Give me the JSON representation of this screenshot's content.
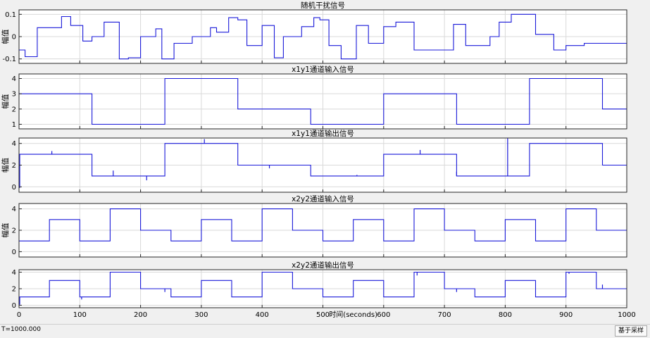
{
  "colors": {
    "background": "#ffffff",
    "axis": "#262626",
    "grid": "#d9d9d9",
    "line": "#1a1ad9"
  },
  "status": {
    "time_text": "T=1000.000",
    "solver_label": "基于采样"
  },
  "chart_data": [
    {
      "type": "line",
      "title": "随机干扰信号",
      "ylabel": "幅值",
      "xlim": [
        0,
        1000
      ],
      "ylim": [
        -0.12,
        0.12
      ],
      "yticks": [
        0.1,
        0,
        -0.1
      ],
      "ytick_labels": [
        "0.1",
        "0",
        "-0.1"
      ],
      "xticks": [
        0,
        100,
        200,
        300,
        400,
        500,
        600,
        700,
        800,
        900,
        1000
      ],
      "show_xtick_labels": false,
      "steps": [
        [
          0,
          -0.06
        ],
        [
          10,
          -0.09
        ],
        [
          30,
          0.04
        ],
        [
          60,
          0.04
        ],
        [
          70,
          0.09
        ],
        [
          85,
          0.05
        ],
        [
          105,
          -0.02
        ],
        [
          120,
          0.0
        ],
        [
          140,
          0.065
        ],
        [
          165,
          -0.1
        ],
        [
          180,
          -0.095
        ],
        [
          200,
          0.0
        ],
        [
          225,
          0.035
        ],
        [
          235,
          -0.1
        ],
        [
          255,
          -0.03
        ],
        [
          285,
          0.0
        ],
        [
          300,
          0.0
        ],
        [
          315,
          0.04
        ],
        [
          325,
          0.02
        ],
        [
          345,
          0.085
        ],
        [
          360,
          0.075
        ],
        [
          375,
          -0.04
        ],
        [
          400,
          0.05
        ],
        [
          420,
          -0.095
        ],
        [
          435,
          0.0
        ],
        [
          465,
          0.045
        ],
        [
          485,
          0.085
        ],
        [
          495,
          0.075
        ],
        [
          510,
          -0.04
        ],
        [
          530,
          -0.1
        ],
        [
          555,
          0.05
        ],
        [
          575,
          -0.03
        ],
        [
          600,
          0.045
        ],
        [
          620,
          0.065
        ],
        [
          650,
          -0.06
        ],
        [
          715,
          0.055
        ],
        [
          735,
          -0.04
        ],
        [
          775,
          0.0
        ],
        [
          790,
          0.065
        ],
        [
          810,
          0.1
        ],
        [
          850,
          0.01
        ],
        [
          880,
          -0.06
        ],
        [
          900,
          -0.04
        ],
        [
          930,
          -0.03
        ]
      ]
    },
    {
      "type": "line",
      "title": "x1y1通道输入信号",
      "ylabel": "幅值",
      "xlim": [
        0,
        1000
      ],
      "ylim": [
        0.7,
        4.3
      ],
      "yticks": [
        1,
        2,
        3,
        4
      ],
      "ytick_labels": [
        "1",
        "2",
        "3",
        "4"
      ],
      "xticks": [
        0,
        100,
        200,
        300,
        400,
        500,
        600,
        700,
        800,
        900,
        1000
      ],
      "show_xtick_labels": false,
      "steps": [
        [
          0,
          3
        ],
        [
          120,
          1
        ],
        [
          240,
          4
        ],
        [
          360,
          2
        ],
        [
          480,
          1
        ],
        [
          600,
          3
        ],
        [
          720,
          1
        ],
        [
          840,
          4
        ],
        [
          960,
          2
        ]
      ]
    },
    {
      "type": "line",
      "title": "x1y1通道输出信号",
      "ylabel": "幅值",
      "xlim": [
        0,
        1000
      ],
      "ylim": [
        -0.5,
        4.5
      ],
      "yticks": [
        0,
        2,
        4
      ],
      "ytick_labels": [
        "0",
        "2",
        "4"
      ],
      "xticks": [
        0,
        100,
        200,
        300,
        400,
        500,
        600,
        700,
        800,
        900,
        1000
      ],
      "show_xtick_labels": false,
      "steps": [
        [
          0,
          3
        ],
        [
          120,
          1
        ],
        [
          240,
          4
        ],
        [
          360,
          2
        ],
        [
          480,
          1
        ],
        [
          600,
          3
        ],
        [
          720,
          1
        ],
        [
          840,
          4
        ],
        [
          960,
          2
        ]
      ],
      "spikes": [
        [
          54,
          3.3
        ],
        [
          155,
          1.5
        ],
        [
          210,
          0.6
        ],
        [
          305,
          4.4
        ],
        [
          412,
          1.7
        ],
        [
          556,
          1.1
        ],
        [
          660,
          3.4
        ],
        [
          720,
          1.4
        ],
        [
          804,
          4.5
        ]
      ]
    },
    {
      "type": "line",
      "title": "x2y2通道输入信号",
      "ylabel": "幅值",
      "xlim": [
        0,
        1000
      ],
      "ylim": [
        -0.5,
        4.5
      ],
      "yticks": [
        0,
        2,
        4
      ],
      "ytick_labels": [
        "0",
        "2",
        "4"
      ],
      "xticks": [
        0,
        100,
        200,
        300,
        400,
        500,
        600,
        700,
        800,
        900,
        1000
      ],
      "show_xtick_labels": false,
      "steps": [
        [
          0,
          1
        ],
        [
          50,
          3
        ],
        [
          100,
          1
        ],
        [
          150,
          4
        ],
        [
          200,
          2
        ],
        [
          250,
          1
        ],
        [
          300,
          3
        ],
        [
          350,
          1
        ],
        [
          400,
          4
        ],
        [
          450,
          2
        ],
        [
          500,
          1
        ],
        [
          550,
          3
        ],
        [
          600,
          1
        ],
        [
          650,
          4
        ],
        [
          700,
          2
        ],
        [
          750,
          1
        ],
        [
          800,
          3
        ],
        [
          850,
          1
        ],
        [
          900,
          4
        ],
        [
          950,
          2
        ]
      ]
    },
    {
      "type": "line",
      "title": "x2y2通道输出信号",
      "xlabel": "时间(seconds)",
      "xlim": [
        0,
        1000
      ],
      "ylim": [
        -0.3,
        4.3
      ],
      "yticks": [
        0,
        2,
        4
      ],
      "ytick_labels": [
        "0",
        "2",
        "4"
      ],
      "xticks": [
        0,
        100,
        200,
        300,
        400,
        500,
        600,
        700,
        800,
        900,
        1000
      ],
      "xtick_labels": [
        "0",
        "100",
        "200",
        "300",
        "400",
        "500",
        "600",
        "700",
        "800",
        "900",
        "1000"
      ],
      "show_xtick_labels": true,
      "steps": [
        [
          0,
          1
        ],
        [
          50,
          3
        ],
        [
          100,
          1
        ],
        [
          150,
          4
        ],
        [
          200,
          2
        ],
        [
          250,
          1
        ],
        [
          300,
          3
        ],
        [
          350,
          1
        ],
        [
          400,
          4
        ],
        [
          450,
          2
        ],
        [
          500,
          1
        ],
        [
          550,
          3
        ],
        [
          600,
          1
        ],
        [
          650,
          4
        ],
        [
          700,
          2
        ],
        [
          750,
          1
        ],
        [
          800,
          3
        ],
        [
          850,
          1
        ],
        [
          900,
          4
        ],
        [
          950,
          2
        ]
      ],
      "spikes": [
        [
          103,
          0.7
        ],
        [
          240,
          1.6
        ],
        [
          655,
          3.6
        ],
        [
          720,
          1.6
        ],
        [
          905,
          3.8
        ],
        [
          960,
          2.5
        ]
      ]
    }
  ]
}
